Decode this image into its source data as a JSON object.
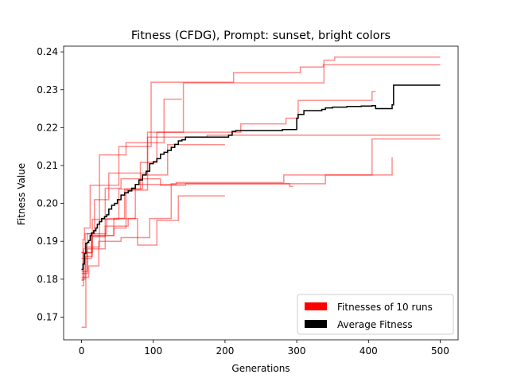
{
  "chart_data": {
    "type": "line",
    "title": "Fitness (CFDG), Prompt: sunset, bright colors",
    "xlabel": "Generations",
    "ylabel": "Fitness Value",
    "xlim": [
      -25,
      525
    ],
    "ylim": [
      0.164,
      0.2415
    ],
    "xticks": [
      0,
      100,
      200,
      300,
      400,
      500
    ],
    "yticks": [
      0.17,
      0.18,
      0.19,
      0.2,
      0.21,
      0.22,
      0.23,
      0.24
    ],
    "ytick_labels": [
      "0.17",
      "0.18",
      "0.19",
      "0.20",
      "0.21",
      "0.22",
      "0.23",
      "0.24"
    ],
    "grid": false,
    "legend_position": "lower-right",
    "legend": [
      {
        "label": "Fitnesses of 10 runs",
        "color": "#ff0000"
      },
      {
        "label": "Average Fitness",
        "color": "#000000"
      }
    ],
    "step": true,
    "runs_color": "#ff0000",
    "runs_alpha": 0.45,
    "average_color": "#000000",
    "runs": [
      [
        [
          0,
          0.1797
        ],
        [
          2,
          0.1905
        ],
        [
          4,
          0.1935
        ],
        [
          10,
          0.1935
        ],
        [
          12,
          0.2048
        ],
        [
          50,
          0.2048
        ],
        [
          52,
          0.215
        ],
        [
          95,
          0.215
        ],
        [
          97,
          0.232
        ],
        [
          210,
          0.232
        ],
        [
          212,
          0.2345
        ],
        [
          300,
          0.2345
        ],
        [
          305,
          0.236
        ],
        [
          335,
          0.236
        ],
        [
          337,
          0.2366
        ],
        [
          500,
          0.2366
        ]
      ],
      [
        [
          0,
          0.1783
        ],
        [
          3,
          0.188
        ],
        [
          5,
          0.192
        ],
        [
          15,
          0.192
        ],
        [
          18,
          0.201
        ],
        [
          35,
          0.201
        ],
        [
          38,
          0.208
        ],
        [
          90,
          0.208
        ],
        [
          92,
          0.2188
        ],
        [
          140,
          0.2188
        ],
        [
          142,
          0.2318
        ],
        [
          335,
          0.2318
        ],
        [
          338,
          0.2378
        ],
        [
          350,
          0.2378
        ],
        [
          353,
          0.2386
        ],
        [
          500,
          0.2386
        ]
      ],
      [
        [
          0,
          0.1673
        ],
        [
          5,
          0.1673
        ],
        [
          6,
          0.1885
        ],
        [
          20,
          0.1885
        ],
        [
          25,
          0.2128
        ],
        [
          60,
          0.2128
        ],
        [
          62,
          0.216
        ],
        [
          110,
          0.216
        ],
        [
          115,
          0.2275
        ],
        [
          140,
          0.2275
        ]
      ],
      [
        [
          0,
          0.18
        ],
        [
          5,
          0.186
        ],
        [
          12,
          0.186
        ],
        [
          15,
          0.1958
        ],
        [
          50,
          0.1958
        ],
        [
          52,
          0.2038
        ],
        [
          80,
          0.2038
        ],
        [
          82,
          0.2108
        ],
        [
          100,
          0.2108
        ],
        [
          105,
          0.2188
        ],
        [
          220,
          0.2188
        ],
        [
          222,
          0.221
        ],
        [
          280,
          0.221
        ],
        [
          285,
          0.2225
        ],
        [
          300,
          0.2225
        ],
        [
          302,
          0.2272
        ],
        [
          400,
          0.2272
        ],
        [
          405,
          0.2295
        ],
        [
          410,
          0.2295
        ]
      ],
      [
        [
          0,
          0.182
        ],
        [
          8,
          0.192
        ],
        [
          30,
          0.192
        ],
        [
          35,
          0.196
        ],
        [
          55,
          0.196
        ],
        [
          60,
          0.2038
        ],
        [
          80,
          0.2038
        ],
        [
          85,
          0.2075
        ],
        [
          115,
          0.2075
        ],
        [
          120,
          0.2155
        ],
        [
          200,
          0.2155
        ]
      ],
      [
        [
          0,
          0.187
        ],
        [
          10,
          0.187
        ],
        [
          14,
          0.1912
        ],
        [
          30,
          0.1912
        ],
        [
          33,
          0.204
        ],
        [
          52,
          0.204
        ],
        [
          55,
          0.2065
        ],
        [
          100,
          0.2065
        ],
        [
          110,
          0.2048
        ],
        [
          140,
          0.2048
        ],
        [
          145,
          0.2052
        ],
        [
          270,
          0.2052
        ],
        [
          290,
          0.2045
        ],
        [
          295,
          0.2045
        ]
      ],
      [
        [
          0,
          0.187
        ],
        [
          12,
          0.187
        ],
        [
          15,
          0.1915
        ],
        [
          40,
          0.1915
        ],
        [
          45,
          0.196
        ],
        [
          70,
          0.196
        ],
        [
          75,
          0.205
        ],
        [
          130,
          0.205
        ],
        [
          132,
          0.2055
        ],
        [
          280,
          0.2055
        ],
        [
          282,
          0.2075
        ],
        [
          430,
          0.2075
        ],
        [
          433,
          0.2122
        ]
      ],
      [
        [
          0,
          0.1805
        ],
        [
          8,
          0.1805
        ],
        [
          10,
          0.1835
        ],
        [
          20,
          0.1835
        ],
        [
          24,
          0.19
        ],
        [
          50,
          0.19
        ],
        [
          55,
          0.191
        ],
        [
          90,
          0.191
        ],
        [
          95,
          0.196
        ],
        [
          120,
          0.196
        ],
        [
          125,
          0.2052
        ],
        [
          320,
          0.2052
        ],
        [
          340,
          0.2075
        ],
        [
          400,
          0.2075
        ],
        [
          405,
          0.217
        ],
        [
          500,
          0.217
        ]
      ],
      [
        [
          0,
          0.1855
        ],
        [
          10,
          0.1855
        ],
        [
          14,
          0.1915
        ],
        [
          40,
          0.1915
        ],
        [
          45,
          0.1935
        ],
        [
          60,
          0.1935
        ],
        [
          62,
          0.2035
        ],
        [
          90,
          0.2035
        ],
        [
          92,
          0.2175
        ],
        [
          170,
          0.2175
        ],
        [
          175,
          0.218
        ],
        [
          500,
          0.218
        ]
      ],
      [
        [
          0,
          0.1815
        ],
        [
          5,
          0.1815
        ],
        [
          8,
          0.188
        ],
        [
          30,
          0.188
        ],
        [
          33,
          0.194
        ],
        [
          60,
          0.194
        ],
        [
          65,
          0.196
        ],
        [
          75,
          0.196
        ],
        [
          78,
          0.189
        ],
        [
          100,
          0.189
        ],
        [
          105,
          0.1955
        ],
        [
          130,
          0.1955
        ],
        [
          135,
          0.202
        ],
        [
          200,
          0.202
        ]
      ]
    ],
    "average": [
      [
        0,
        0.1826
      ],
      [
        2,
        0.184
      ],
      [
        4,
        0.1868
      ],
      [
        6,
        0.1895
      ],
      [
        8,
        0.1897
      ],
      [
        10,
        0.1902
      ],
      [
        12,
        0.1915
      ],
      [
        14,
        0.1922
      ],
      [
        17,
        0.1928
      ],
      [
        20,
        0.1935
      ],
      [
        22,
        0.1945
      ],
      [
        25,
        0.1952
      ],
      [
        28,
        0.196
      ],
      [
        32,
        0.1965
      ],
      [
        35,
        0.197
      ],
      [
        38,
        0.1985
      ],
      [
        42,
        0.1995
      ],
      [
        46,
        0.2
      ],
      [
        50,
        0.201
      ],
      [
        55,
        0.2022
      ],
      [
        60,
        0.2028
      ],
      [
        65,
        0.2033
      ],
      [
        70,
        0.204
      ],
      [
        75,
        0.205
      ],
      [
        80,
        0.2062
      ],
      [
        85,
        0.2075
      ],
      [
        90,
        0.2085
      ],
      [
        95,
        0.2105
      ],
      [
        100,
        0.211
      ],
      [
        105,
        0.2118
      ],
      [
        110,
        0.213
      ],
      [
        115,
        0.2135
      ],
      [
        120,
        0.214
      ],
      [
        125,
        0.2148
      ],
      [
        130,
        0.2156
      ],
      [
        135,
        0.2165
      ],
      [
        140,
        0.2168
      ],
      [
        145,
        0.2175
      ],
      [
        150,
        0.2175
      ],
      [
        205,
        0.218
      ],
      [
        210,
        0.219
      ],
      [
        215,
        0.2192
      ],
      [
        280,
        0.2195
      ],
      [
        298,
        0.2195
      ],
      [
        300,
        0.2225
      ],
      [
        302,
        0.2235
      ],
      [
        310,
        0.2245
      ],
      [
        335,
        0.2248
      ],
      [
        340,
        0.2252
      ],
      [
        350,
        0.2254
      ],
      [
        370,
        0.2256
      ],
      [
        390,
        0.2257
      ],
      [
        405,
        0.2258
      ],
      [
        410,
        0.225
      ],
      [
        430,
        0.225
      ],
      [
        433,
        0.226
      ],
      [
        435,
        0.2312
      ],
      [
        500,
        0.2312
      ]
    ]
  }
}
